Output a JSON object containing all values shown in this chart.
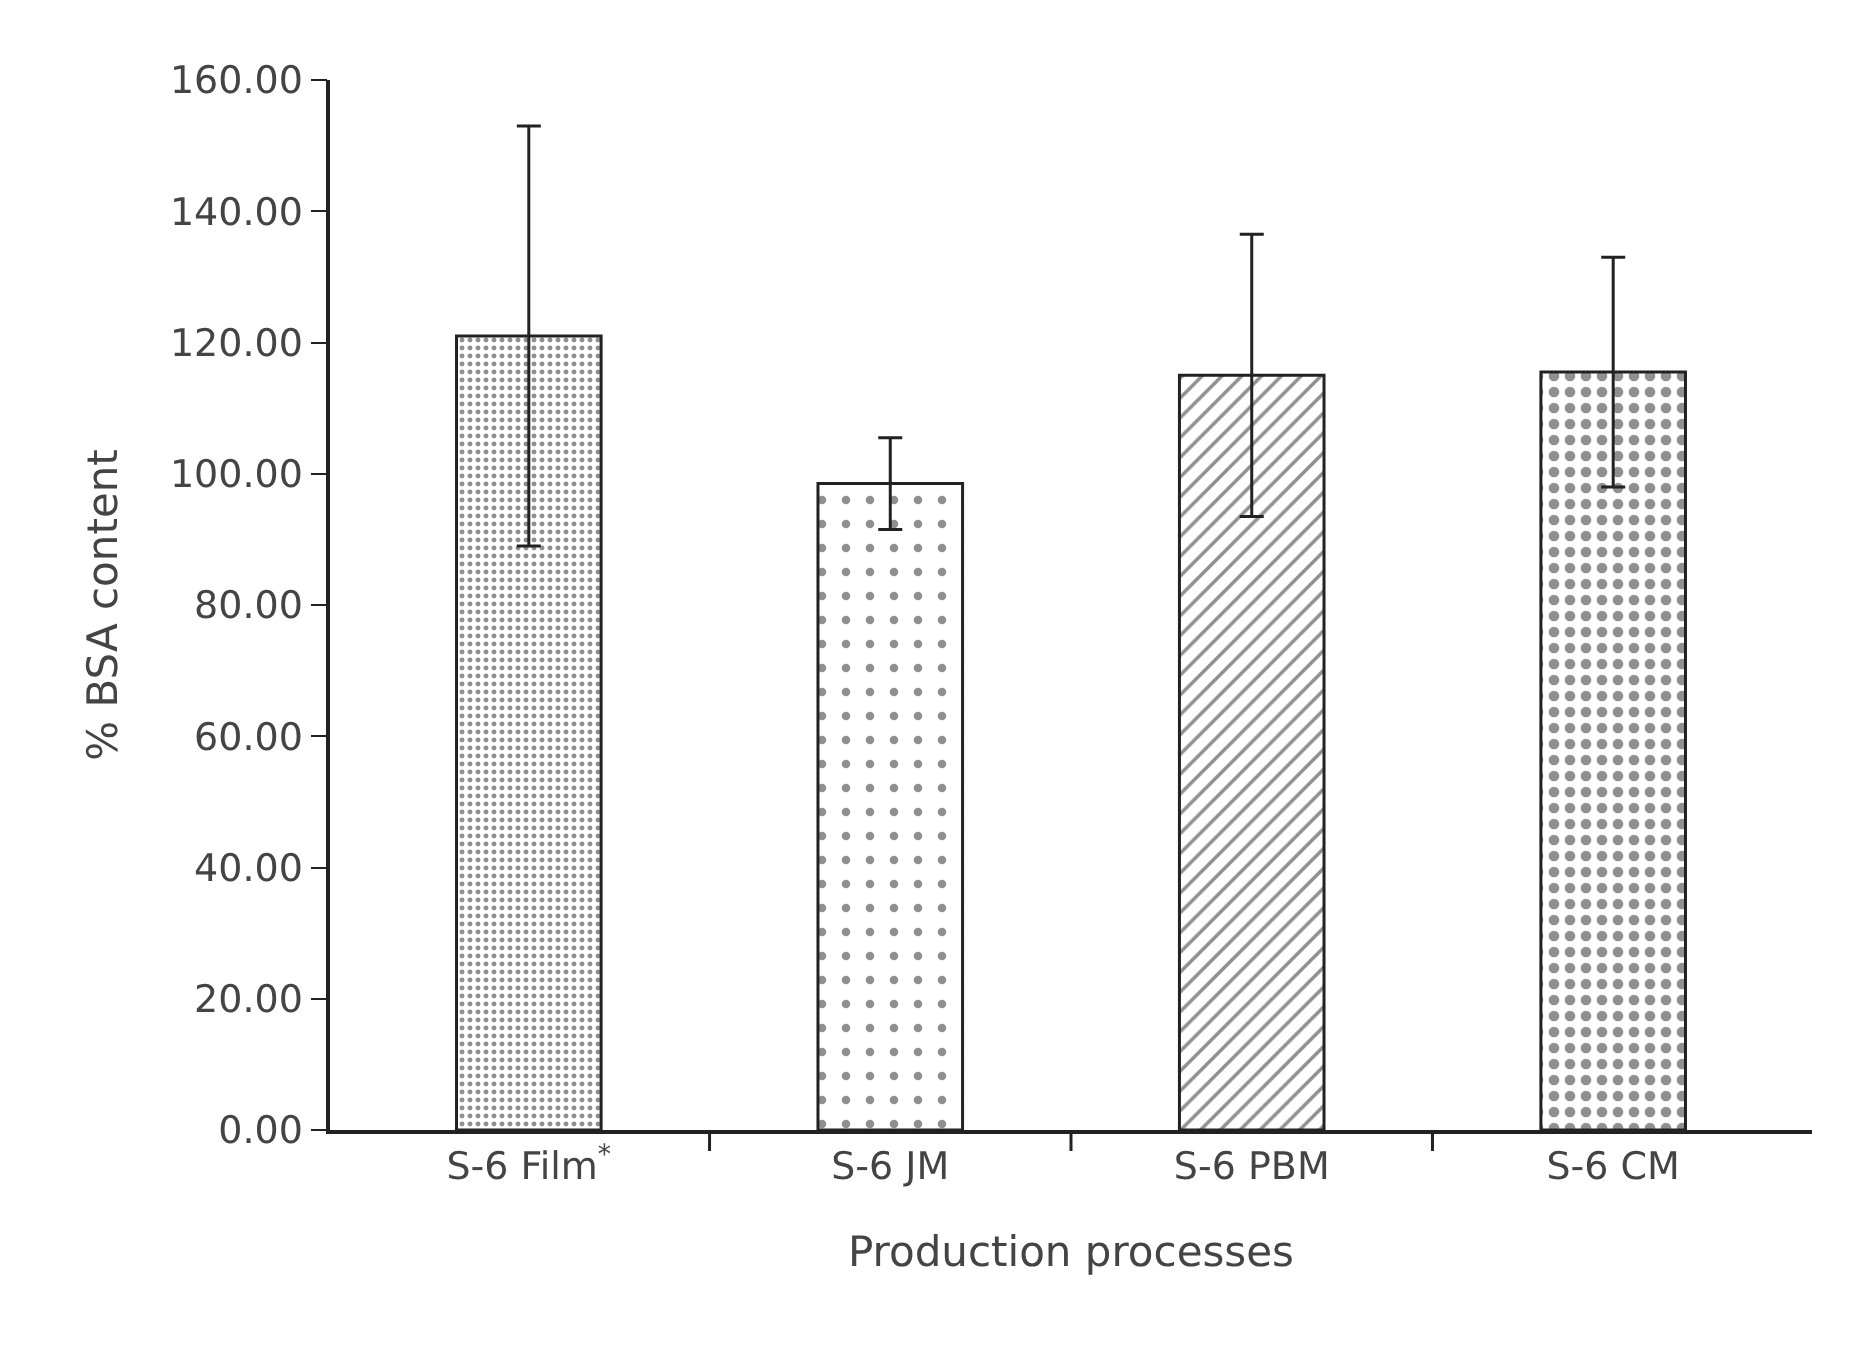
{
  "chart_data": {
    "type": "bar",
    "xlabel": "Production processes",
    "ylabel": "% BSA content",
    "categories": [
      "S-6 Film$^{*}$",
      "S-6 JM",
      "S-6 PBM",
      "S-6 CM"
    ],
    "values": [
      121,
      98.5,
      115,
      115.5
    ],
    "errors": [
      32,
      7,
      21.5,
      17.5
    ],
    "color": "#222222",
    "ylim": [
      0,
      160
    ],
    "yticks": [
      {
        "value": 0,
        "label": "0.00"
      },
      {
        "value": 20,
        "label": "20.00"
      },
      {
        "value": 40,
        "label": "40.00"
      },
      {
        "value": 60,
        "label": "60.00"
      },
      {
        "value": 80,
        "label": "80.00"
      },
      {
        "value": 100,
        "label": "100.00"
      },
      {
        "value": 120,
        "label": "120.00"
      },
      {
        "value": 140,
        "label": "140.00"
      },
      {
        "value": 160,
        "label": "160.00"
      }
    ],
    "grid": false
  }
}
